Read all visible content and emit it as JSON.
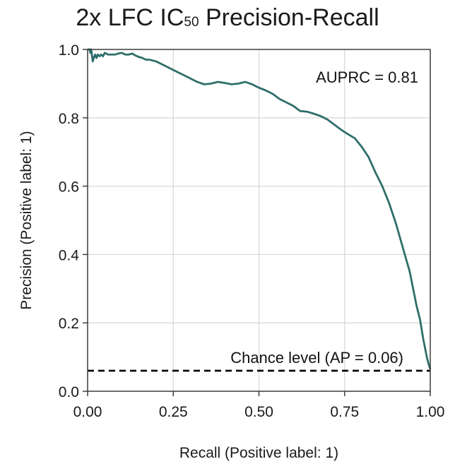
{
  "chart_data": {
    "type": "line",
    "title_main": "2x LFC IC",
    "title_sub": "50",
    "title_rest": " Precision-Recall",
    "xlabel": "Recall (Positive label: 1)",
    "ylabel": "Precision (Positive label: 1)",
    "xlim": [
      0,
      1
    ],
    "ylim": [
      0,
      1
    ],
    "xticks": [
      0,
      0.25,
      0.5,
      0.75,
      1.0
    ],
    "xtick_labels": [
      "0.00",
      "0.25",
      "0.50",
      "0.75",
      "1.00"
    ],
    "yticks": [
      0,
      0.2,
      0.4,
      0.6,
      0.8,
      1.0
    ],
    "ytick_labels": [
      "0.0",
      "0.2",
      "0.4",
      "0.6",
      "0.8",
      "1.0"
    ],
    "grid": true,
    "colors": {
      "curve": "#2f6e6b",
      "chance": "#000000",
      "grid": "#d9d9d9",
      "frame": "#333333"
    },
    "annotation": "AUPRC = 0.81",
    "chance_label": "Chance level (AP = 0.06)",
    "chance_level": 0.06,
    "series": [
      {
        "x": [
          0,
          0.003,
          0.006,
          0.008,
          0.01,
          0.012,
          0.015,
          0.018,
          0.022,
          0.026,
          0.03,
          0.035,
          0.04,
          0.045,
          0.05,
          0.06,
          0.07,
          0.08,
          0.09,
          0.1,
          0.11,
          0.12,
          0.13,
          0.14,
          0.15,
          0.16,
          0.17,
          0.18,
          0.2,
          0.22,
          0.24,
          0.26,
          0.28,
          0.3,
          0.32,
          0.34,
          0.36,
          0.38,
          0.4,
          0.42,
          0.44,
          0.46,
          0.48,
          0.5,
          0.52,
          0.54,
          0.56,
          0.58,
          0.6,
          0.62,
          0.64,
          0.66,
          0.68,
          0.7,
          0.72,
          0.74,
          0.76,
          0.78,
          0.8,
          0.82,
          0.84,
          0.86,
          0.88,
          0.9,
          0.92,
          0.94,
          0.96,
          0.97,
          0.98,
          0.99,
          0.995,
          1.0
        ],
        "y": [
          1.0,
          1.0,
          1.0,
          0.99,
          1.0,
          0.99,
          0.965,
          0.975,
          0.985,
          0.975,
          0.985,
          0.98,
          0.985,
          0.98,
          0.99,
          0.985,
          0.985,
          0.985,
          0.988,
          0.99,
          0.985,
          0.985,
          0.988,
          0.982,
          0.978,
          0.975,
          0.97,
          0.97,
          0.965,
          0.955,
          0.945,
          0.935,
          0.925,
          0.915,
          0.905,
          0.898,
          0.9,
          0.905,
          0.902,
          0.898,
          0.9,
          0.905,
          0.898,
          0.888,
          0.88,
          0.87,
          0.855,
          0.845,
          0.835,
          0.82,
          0.818,
          0.812,
          0.805,
          0.795,
          0.78,
          0.765,
          0.752,
          0.74,
          0.715,
          0.685,
          0.64,
          0.6,
          0.55,
          0.49,
          0.42,
          0.35,
          0.25,
          0.21,
          0.15,
          0.1,
          0.08,
          0.065
        ]
      }
    ]
  }
}
